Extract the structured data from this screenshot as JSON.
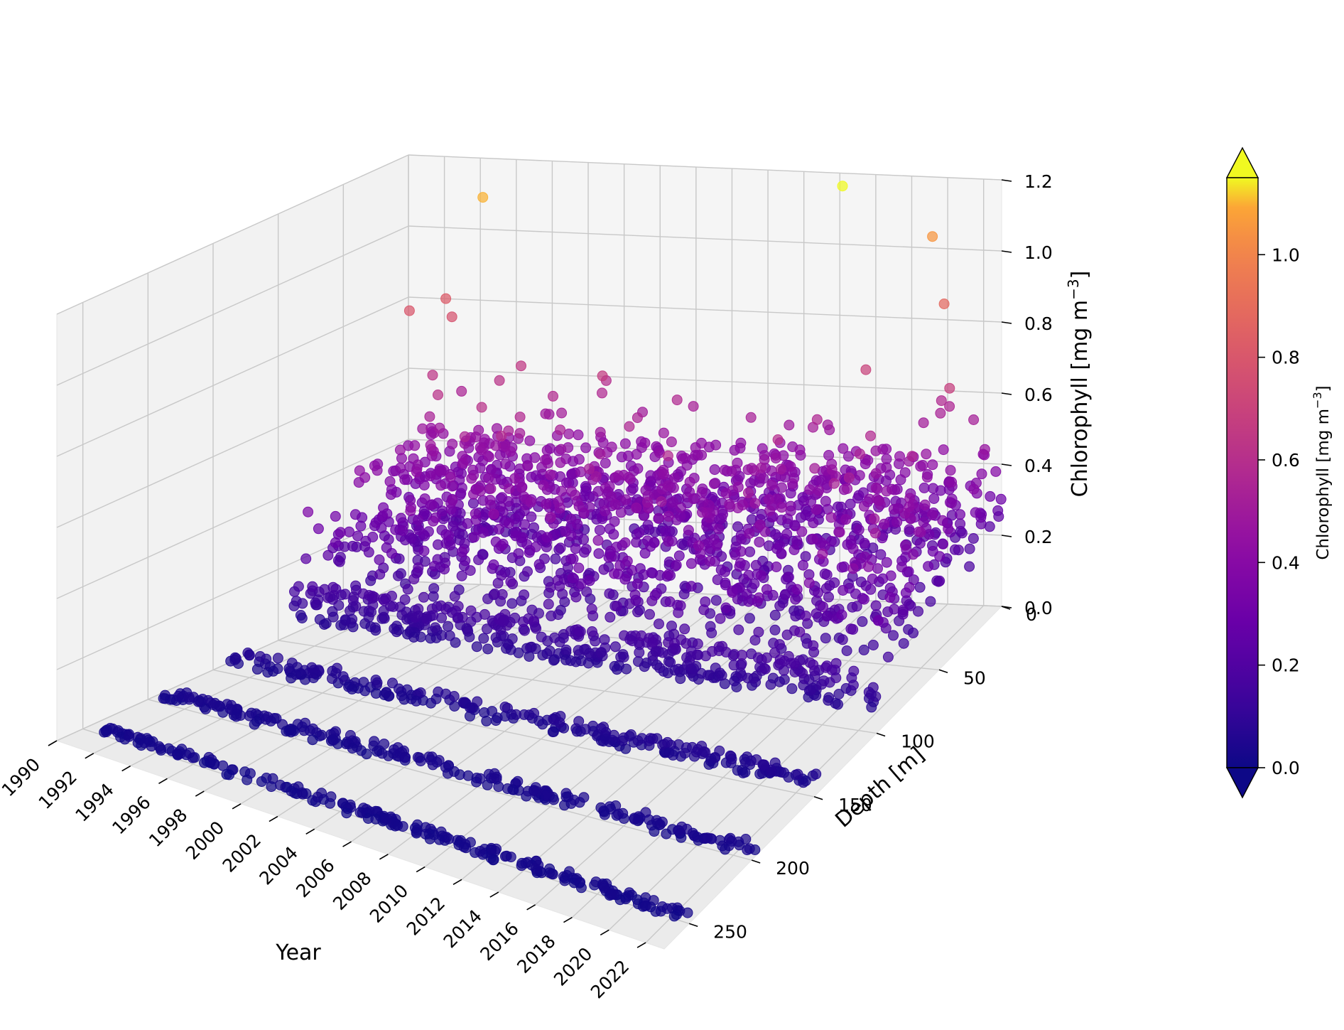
{
  "chart_data": {
    "type": "scatter",
    "projection": "3d",
    "x": {
      "label": "Year",
      "range": [
        1990,
        2023
      ],
      "ticks": [
        "1990",
        "1992",
        "1994",
        "1996",
        "1998",
        "2000",
        "2002",
        "2004",
        "2006",
        "2008",
        "2010",
        "2012",
        "2014",
        "2016",
        "2018",
        "2020",
        "2022"
      ]
    },
    "y": {
      "label": "Depth [m]",
      "range": [
        0,
        270
      ],
      "ticks": [
        "0",
        "50",
        "100",
        "150",
        "200",
        "250"
      ]
    },
    "z": {
      "label": "Chlorophyll [mg m",
      "label_sup": "−3",
      "label_end": "]",
      "range": [
        0,
        1.2
      ],
      "ticks": [
        "0.0",
        "0.2",
        "0.4",
        "0.6",
        "0.8",
        "1.0",
        "1.2"
      ]
    },
    "colorbar": {
      "colormap": "plasma",
      "range": [
        0.0,
        1.15
      ],
      "extend": "both",
      "ticks": [
        "0.0",
        "0.2",
        "0.4",
        "0.6",
        "0.8",
        "1.0"
      ],
      "label": "Chlorophyll [mg m",
      "label_sup": "−3",
      "label_end": "]"
    },
    "grid": true,
    "series": [
      {
        "depth_m": 0,
        "year_range": [
          1991,
          2023
        ],
        "typical_value": 0.3
      },
      {
        "depth_m": 25,
        "year_range": [
          1991,
          2023
        ],
        "typical_value": 0.32
      },
      {
        "depth_m": 50,
        "year_range": [
          1991,
          2023
        ],
        "typical_value": 0.3
      },
      {
        "depth_m": 75,
        "year_range": [
          1991,
          2023
        ],
        "typical_value": 0.22
      },
      {
        "depth_m": 100,
        "year_range": [
          1991,
          2023
        ],
        "typical_value": 0.12
      },
      {
        "depth_m": 150,
        "year_range": [
          1991,
          2023
        ],
        "typical_value": 0.05
      },
      {
        "depth_m": 200,
        "year_range": [
          1991,
          2023
        ],
        "typical_value": 0.03
      },
      {
        "depth_m": 250,
        "year_range": [
          1991,
          2023
        ],
        "typical_value": 0.02
      }
    ],
    "highlight_points": [
      {
        "year": 1994.5,
        "depth_m": 5,
        "value": 1.1
      },
      {
        "year": 2014.5,
        "depth_m": 5,
        "value": 1.18
      },
      {
        "year": 2019.5,
        "depth_m": 5,
        "value": 1.05
      },
      {
        "year": 2020.5,
        "depth_m": 10,
        "value": 0.88
      },
      {
        "year": 1991.5,
        "depth_m": 20,
        "value": 0.8
      },
      {
        "year": 1992.8,
        "depth_m": 10,
        "value": 0.82
      },
      {
        "year": 1993.5,
        "depth_m": 15,
        "value": 0.78
      },
      {
        "year": 1996.5,
        "depth_m": 20,
        "value": 0.62
      },
      {
        "year": 2016.5,
        "depth_m": 15,
        "value": 0.7
      },
      {
        "year": 2021.5,
        "depth_m": 20,
        "value": 0.68
      }
    ]
  }
}
